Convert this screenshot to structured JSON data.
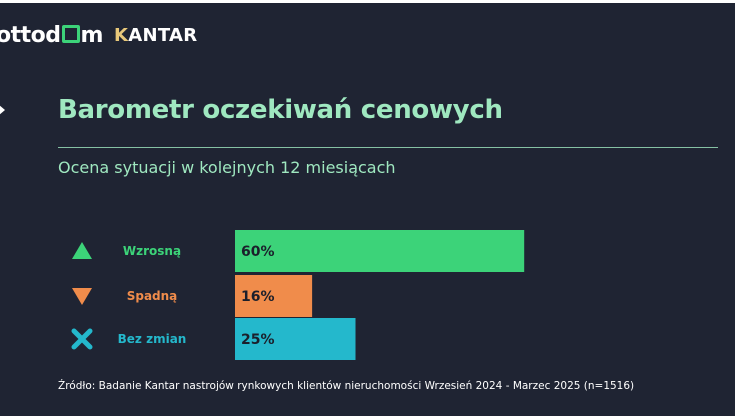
{
  "logos": {
    "otodom_prefix": "ot",
    "otodom_suffix": "tod",
    "otodom_end": "m",
    "kantar_first": "K",
    "kantar_rest": "ANTAR"
  },
  "colors": {
    "background": "#1f2433",
    "accent": "#9fe8c0",
    "up": "#3cd379",
    "down": "#f08c4b",
    "nochange": "#24b8cc"
  },
  "chart_data": {
    "type": "bar",
    "orientation": "horizontal",
    "title": "Barometr oczekiwań cenowych",
    "subtitle": "Ocena sytuacji w kolejnych 12 miesiącach",
    "categories": [
      "Wzrosną",
      "Spadną",
      "Bez zmian"
    ],
    "values": [
      60,
      16,
      25
    ],
    "value_labels": [
      "60%",
      "16%",
      "25%"
    ],
    "icons": [
      "triangle-up-icon",
      "triangle-down-icon",
      "cross-icon"
    ],
    "colors": [
      "#3cd379",
      "#f08c4b",
      "#24b8cc"
    ],
    "xlim": [
      0,
      100
    ],
    "grid": false,
    "legend": "none"
  },
  "source": "Źródło: Badanie Kantar nastrojów rynkowych klientów nieruchomości Wrzesień 2024 - Marzec 2025 (n=1516)"
}
